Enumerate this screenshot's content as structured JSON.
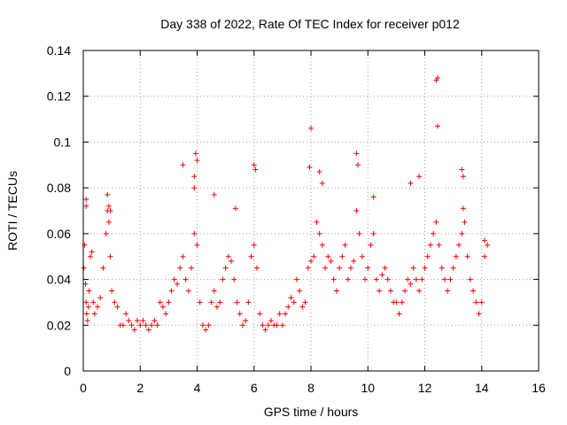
{
  "chart_data": {
    "type": "scatter",
    "title": "Day 338 of 2022, Rate Of TEC Index for receiver p012",
    "xlabel": "GPS time / hours",
    "ylabel": "ROTI / TECUs",
    "xlim": [
      0,
      16
    ],
    "ylim": [
      0,
      0.14
    ],
    "xticks": [
      0,
      2,
      4,
      6,
      8,
      10,
      12,
      14,
      16
    ],
    "xtick_labels": [
      "0",
      "2",
      "4",
      "6",
      "8",
      "10",
      "12",
      "14",
      "16"
    ],
    "yticks": [
      0,
      0.02,
      0.04,
      0.06,
      0.08,
      0.1,
      0.12,
      0.14
    ],
    "ytick_labels": [
      "0",
      "0.02",
      "0.04",
      "0.06",
      "0.08",
      "0.1",
      "0.12",
      "0.14"
    ],
    "grid": true,
    "marker": "+",
    "color": "#ff0000",
    "series": [
      {
        "name": "ROTI",
        "x": [
          0.02,
          0.05,
          0.08,
          0.1,
          0.12,
          0.15,
          0.18,
          0.2,
          0.25,
          0.3,
          0.35,
          0.4,
          0.5,
          0.6,
          0.7,
          0.8,
          0.85,
          0.9,
          0.95,
          1.0,
          1.1,
          1.2,
          1.3,
          1.4,
          1.5,
          1.6,
          1.7,
          1.8,
          1.9,
          2.0,
          2.1,
          2.2,
          2.3,
          2.4,
          2.5,
          2.6,
          2.7,
          2.8,
          2.9,
          3.0,
          3.1,
          3.2,
          3.3,
          3.4,
          3.5,
          3.6,
          3.7,
          3.8,
          3.9,
          4.0,
          4.1,
          4.2,
          4.3,
          4.4,
          4.5,
          4.6,
          4.7,
          4.8,
          4.9,
          5.0,
          5.1,
          5.2,
          5.3,
          5.4,
          5.5,
          5.6,
          5.7,
          5.8,
          5.9,
          6.0,
          6.1,
          6.2,
          6.3,
          6.4,
          6.5,
          6.6,
          6.7,
          6.8,
          6.9,
          7.0,
          7.1,
          7.2,
          7.3,
          7.4,
          7.5,
          7.6,
          7.7,
          7.8,
          7.9,
          8.0,
          8.1,
          8.2,
          8.3,
          8.4,
          8.5,
          8.6,
          8.7,
          8.8,
          8.9,
          9.0,
          9.1,
          9.2,
          9.3,
          9.4,
          9.5,
          9.6,
          9.7,
          9.8,
          9.9,
          10.0,
          10.1,
          10.2,
          10.3,
          10.4,
          10.5,
          10.6,
          10.7,
          10.8,
          10.9,
          11.0,
          11.1,
          11.2,
          11.3,
          11.4,
          11.5,
          11.6,
          11.7,
          11.8,
          11.9,
          12.0,
          12.1,
          12.2,
          12.3,
          12.4,
          12.5,
          12.6,
          12.7,
          12.8,
          12.9,
          13.0,
          13.1,
          13.2,
          13.3,
          13.4,
          13.5,
          13.6,
          13.7,
          13.8,
          13.9,
          14.0,
          14.1,
          14.2,
          3.5,
          3.9,
          3.95,
          4.0,
          3.9,
          0.1,
          0.1,
          0.85,
          0.9,
          0.95,
          4.6,
          5.35,
          6.0,
          6.05,
          7.95,
          8.0,
          8.3,
          8.4,
          9.6,
          9.65,
          10.2,
          11.5,
          11.8,
          12.4,
          12.45,
          12.45,
          13.3,
          13.35,
          13.35,
          14.1
        ],
        "y": [
          0.045,
          0.055,
          0.038,
          0.03,
          0.025,
          0.022,
          0.028,
          0.035,
          0.05,
          0.052,
          0.03,
          0.025,
          0.028,
          0.032,
          0.045,
          0.06,
          0.07,
          0.065,
          0.05,
          0.035,
          0.03,
          0.028,
          0.02,
          0.02,
          0.025,
          0.022,
          0.02,
          0.018,
          0.022,
          0.02,
          0.022,
          0.02,
          0.018,
          0.02,
          0.022,
          0.02,
          0.03,
          0.028,
          0.025,
          0.03,
          0.035,
          0.04,
          0.038,
          0.045,
          0.05,
          0.04,
          0.035,
          0.045,
          0.06,
          0.055,
          0.03,
          0.02,
          0.018,
          0.02,
          0.03,
          0.035,
          0.028,
          0.03,
          0.04,
          0.045,
          0.05,
          0.048,
          0.04,
          0.03,
          0.025,
          0.02,
          0.022,
          0.03,
          0.05,
          0.055,
          0.045,
          0.025,
          0.02,
          0.018,
          0.02,
          0.022,
          0.02,
          0.02,
          0.025,
          0.02,
          0.025,
          0.028,
          0.032,
          0.03,
          0.04,
          0.035,
          0.028,
          0.03,
          0.045,
          0.048,
          0.05,
          0.065,
          0.06,
          0.055,
          0.045,
          0.05,
          0.048,
          0.04,
          0.035,
          0.045,
          0.05,
          0.055,
          0.04,
          0.045,
          0.048,
          0.07,
          0.06,
          0.05,
          0.04,
          0.045,
          0.055,
          0.06,
          0.04,
          0.035,
          0.042,
          0.045,
          0.04,
          0.035,
          0.03,
          0.03,
          0.025,
          0.03,
          0.035,
          0.04,
          0.038,
          0.045,
          0.04,
          0.035,
          0.04,
          0.045,
          0.05,
          0.055,
          0.06,
          0.065,
          0.055,
          0.045,
          0.04,
          0.035,
          0.04,
          0.045,
          0.05,
          0.055,
          0.06,
          0.065,
          0.05,
          0.04,
          0.035,
          0.03,
          0.025,
          0.03,
          0.05,
          0.055,
          0.09,
          0.085,
          0.095,
          0.092,
          0.08,
          0.075,
          0.072,
          0.077,
          0.072,
          0.07,
          0.077,
          0.071,
          0.09,
          0.088,
          0.089,
          0.106,
          0.087,
          0.082,
          0.095,
          0.09,
          0.076,
          0.082,
          0.085,
          0.127,
          0.128,
          0.107,
          0.088,
          0.085,
          0.071,
          0.057
        ]
      }
    ]
  }
}
